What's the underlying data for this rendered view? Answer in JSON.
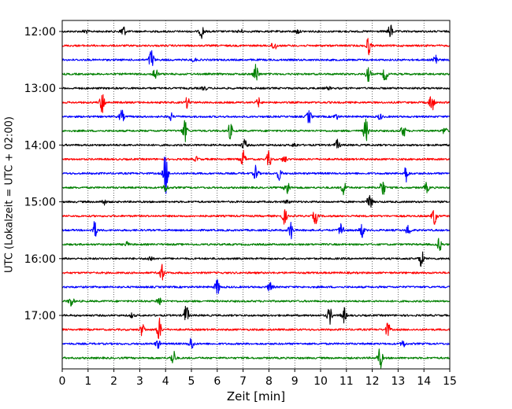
{
  "chart_data": {
    "type": "line",
    "title": "",
    "xlabel": "Zeit  [min]",
    "ylabel": "UTC (Lokalzeit = UTC + 02:00)",
    "xlim": [
      0,
      15
    ],
    "x_ticks": [
      "0",
      "1",
      "2",
      "3",
      "4",
      "5",
      "6",
      "7",
      "8",
      "9",
      "10",
      "11",
      "12",
      "13",
      "14",
      "15"
    ],
    "y_ticks": [
      "12:00",
      "13:00",
      "14:00",
      "15:00",
      "16:00",
      "17:00"
    ],
    "grid": "x-dotted",
    "trace_colors": [
      "#000000",
      "#ff0000",
      "#0000ff",
      "#008000"
    ],
    "series": [
      {
        "start": "12:00",
        "color": "#000000",
        "events": [
          [
            2.35,
            1.0
          ],
          [
            5.4,
            0.9
          ],
          [
            12.7,
            1.0
          ],
          [
            0.9,
            0.3
          ],
          [
            6.9,
            0.3
          ],
          [
            9.1,
            0.3
          ]
        ]
      },
      {
        "start": "12:15",
        "color": "#ff0000",
        "events": [
          [
            8.2,
            0.8
          ],
          [
            11.85,
            1.3
          ]
        ]
      },
      {
        "start": "12:30",
        "color": "#0000ff",
        "events": [
          [
            3.45,
            1.6
          ],
          [
            14.45,
            0.9
          ],
          [
            5.1,
            0.25
          ]
        ]
      },
      {
        "start": "12:45",
        "color": "#008000",
        "events": [
          [
            3.6,
            1.0
          ],
          [
            7.5,
            1.5
          ],
          [
            11.85,
            1.0
          ],
          [
            12.5,
            1.0
          ]
        ]
      },
      {
        "start": "13:00",
        "color": "#000000",
        "events": [
          [
            5.5,
            0.3
          ],
          [
            10.3,
            0.2
          ]
        ]
      },
      {
        "start": "13:15",
        "color": "#ff0000",
        "events": [
          [
            1.55,
            1.6
          ],
          [
            4.85,
            0.8
          ],
          [
            7.6,
            0.6
          ],
          [
            14.3,
            1.5
          ]
        ]
      },
      {
        "start": "13:30",
        "color": "#0000ff",
        "events": [
          [
            2.3,
            0.9
          ],
          [
            4.2,
            0.5
          ],
          [
            9.55,
            1.0
          ],
          [
            10.6,
            0.4
          ],
          [
            12.3,
            0.4
          ]
        ]
      },
      {
        "start": "13:45",
        "color": "#008000",
        "events": [
          [
            4.75,
            1.5
          ],
          [
            6.5,
            1.1
          ],
          [
            11.75,
            1.7
          ],
          [
            13.2,
            0.9
          ],
          [
            14.8,
            0.5
          ]
        ]
      },
      {
        "start": "14:00",
        "color": "#000000",
        "events": [
          [
            7.05,
            0.8
          ],
          [
            10.65,
            0.7
          ],
          [
            9.0,
            0.3
          ]
        ]
      },
      {
        "start": "14:15",
        "color": "#ff0000",
        "events": [
          [
            7.0,
            1.2
          ],
          [
            8.0,
            1.1
          ],
          [
            8.6,
            0.5
          ],
          [
            5.2,
            0.3
          ]
        ]
      },
      {
        "start": "14:30",
        "color": "#0000ff",
        "events": [
          [
            4.0,
            3.2
          ],
          [
            7.5,
            1.1
          ],
          [
            8.4,
            0.9
          ],
          [
            13.3,
            1.2
          ]
        ]
      },
      {
        "start": "14:45",
        "color": "#008000",
        "events": [
          [
            8.7,
            1.2
          ],
          [
            10.9,
            1.1
          ],
          [
            12.4,
            1.3
          ],
          [
            14.1,
            0.7
          ],
          [
            4.0,
            0.6
          ]
        ]
      },
      {
        "start": "15:00",
        "color": "#000000",
        "events": [
          [
            11.9,
            1.4
          ],
          [
            1.6,
            0.4
          ],
          [
            8.7,
            0.3
          ]
        ]
      },
      {
        "start": "15:15",
        "color": "#ff0000",
        "events": [
          [
            8.6,
            1.1
          ],
          [
            9.8,
            1.1
          ],
          [
            14.4,
            1.3
          ]
        ]
      },
      {
        "start": "15:30",
        "color": "#0000ff",
        "events": [
          [
            1.25,
            1.2
          ],
          [
            8.85,
            1.3
          ],
          [
            10.8,
            1.1
          ],
          [
            11.6,
            1.0
          ],
          [
            13.4,
            0.8
          ]
        ]
      },
      {
        "start": "15:45",
        "color": "#008000",
        "events": [
          [
            14.6,
            0.9
          ],
          [
            2.5,
            0.3
          ]
        ]
      },
      {
        "start": "16:00",
        "color": "#000000",
        "events": [
          [
            13.9,
            1.2
          ],
          [
            3.4,
            0.4
          ]
        ]
      },
      {
        "start": "16:15",
        "color": "#ff0000",
        "events": [
          [
            3.85,
            1.2
          ]
        ]
      },
      {
        "start": "16:30",
        "color": "#0000ff",
        "events": [
          [
            6.0,
            1.2
          ],
          [
            8.05,
            0.8
          ]
        ]
      },
      {
        "start": "16:45",
        "color": "#008000",
        "events": [
          [
            0.35,
            0.8
          ],
          [
            3.75,
            0.7
          ]
        ]
      },
      {
        "start": "17:00",
        "color": "#000000",
        "events": [
          [
            4.8,
            1.5
          ],
          [
            10.35,
            1.2
          ],
          [
            10.9,
            1.1
          ],
          [
            2.7,
            0.3
          ]
        ]
      },
      {
        "start": "17:15",
        "color": "#ff0000",
        "events": [
          [
            3.1,
            0.9
          ],
          [
            3.75,
            1.6
          ],
          [
            12.6,
            1.0
          ]
        ]
      },
      {
        "start": "17:30",
        "color": "#0000ff",
        "events": [
          [
            3.7,
            0.6
          ],
          [
            5.0,
            0.9
          ],
          [
            13.2,
            0.5
          ]
        ]
      },
      {
        "start": "17:45",
        "color": "#008000",
        "events": [
          [
            4.3,
            1.1
          ],
          [
            12.3,
            1.6
          ]
        ]
      }
    ]
  }
}
